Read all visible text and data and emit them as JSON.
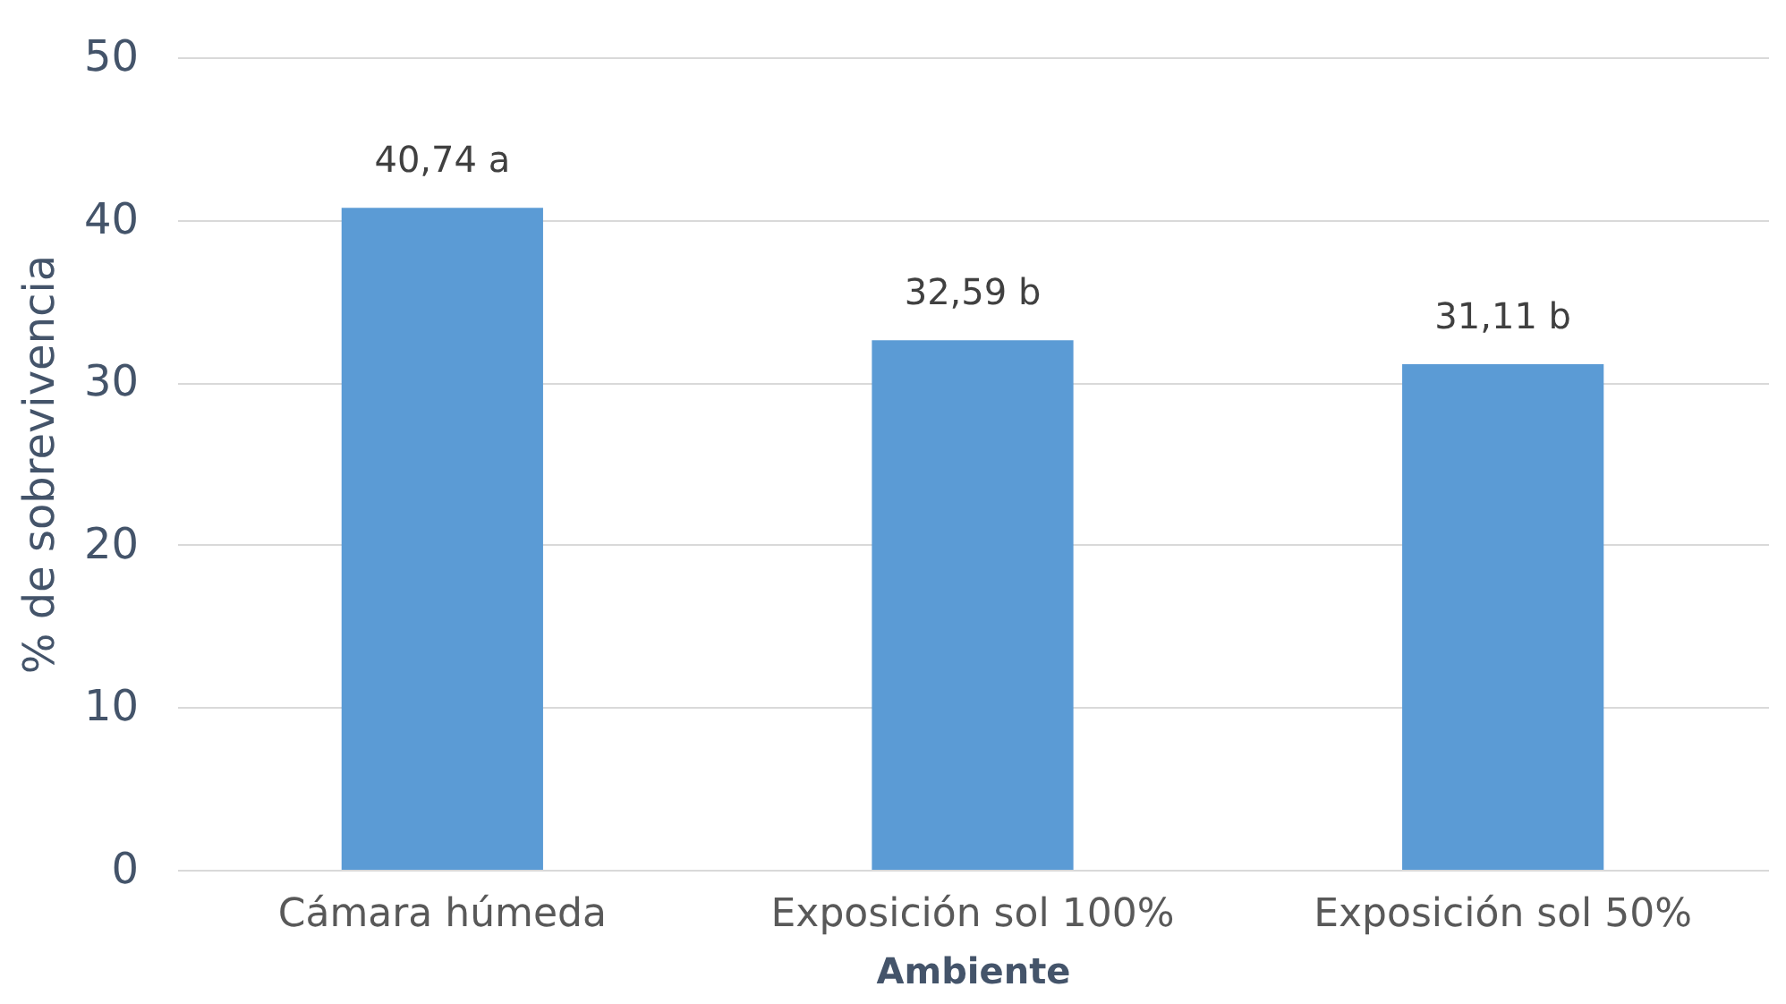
{
  "chart_data": {
    "type": "bar",
    "xlabel": "Ambiente",
    "ylabel": "% de sobrevivencia",
    "categories": [
      "Cámara húmeda",
      "Exposición sol 100%",
      "Exposición sol 50%"
    ],
    "values": [
      40.74,
      32.59,
      31.11
    ],
    "value_labels": [
      "40,74 a",
      "32,59 b",
      "31,11 b"
    ],
    "color": "#5b9bd5",
    "ylim": [
      0,
      50
    ],
    "yticks": [
      0,
      10,
      20,
      30,
      40,
      50
    ],
    "grid": "y"
  }
}
